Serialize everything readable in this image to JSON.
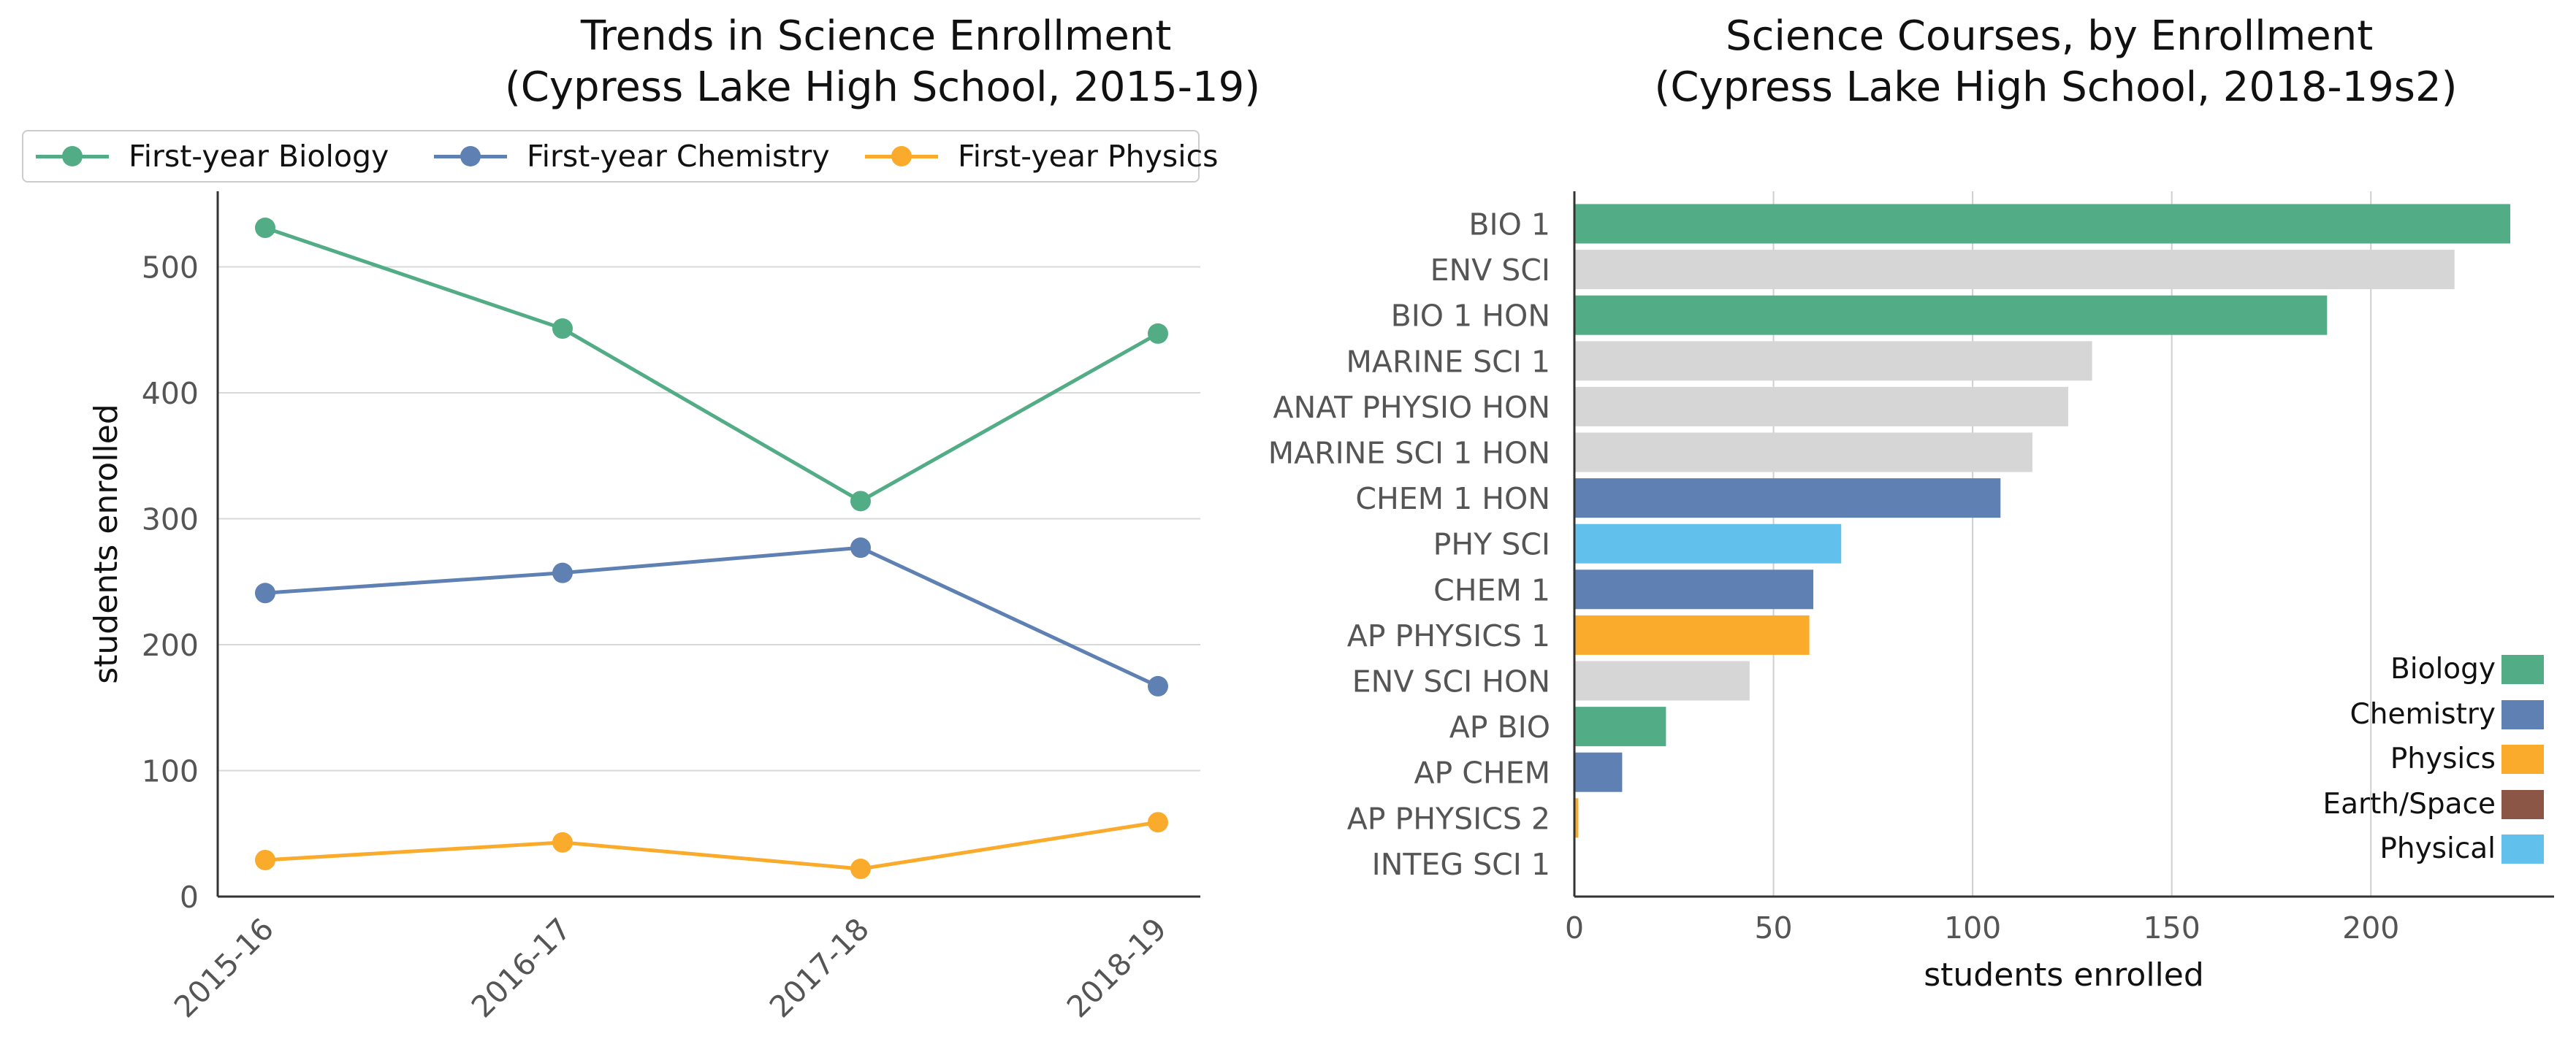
{
  "chart_data": [
    {
      "type": "line",
      "title": "Trends in Science Enrollment\n(Cypress Lake High School, 2015-19)",
      "xlabel": "",
      "ylabel": "students enrolled",
      "x": [
        "2015-16",
        "2016-17",
        "2017-18",
        "2018-19"
      ],
      "ylim": [
        0,
        560
      ],
      "yticks": [
        0,
        100,
        200,
        300,
        400,
        500
      ],
      "grid": "horizontal",
      "legend": "top",
      "series": [
        {
          "name": "First-year Biology",
          "color": "#52ac86",
          "values": [
            531,
            451,
            314,
            447
          ]
        },
        {
          "name": "First-year Chemistry",
          "color": "#5e80b2",
          "values": [
            241,
            257,
            277,
            167
          ]
        },
        {
          "name": "First-year Physics",
          "color": "#fbab2c",
          "values": [
            29,
            43,
            22,
            59
          ]
        }
      ]
    },
    {
      "type": "bar",
      "orientation": "horizontal",
      "title": "Science Courses, by Enrollment\n(Cypress Lake High School, 2018-19s2)",
      "xlabel": "students enrolled",
      "ylabel": "",
      "xlim": [
        0,
        246
      ],
      "xticks": [
        0,
        50,
        100,
        150,
        200
      ],
      "grid": "vertical",
      "legend": "bottom-right",
      "categories": [
        "BIO 1",
        "ENV SCI",
        "BIO 1 HON",
        "MARINE SCI 1",
        "ANAT PHYSIO HON",
        "MARINE SCI 1 HON",
        "CHEM 1 HON",
        "PHY SCI",
        "CHEM 1",
        "AP PHYSICS 1",
        "ENV SCI HON",
        "AP BIO",
        "AP CHEM",
        "AP PHYSICS 2",
        "INTEG SCI 1"
      ],
      "values": [
        235,
        221,
        189,
        130,
        124,
        115,
        107,
        67,
        60,
        59,
        44,
        23,
        12,
        1,
        0
      ],
      "bar_colors": [
        "#52ac86",
        "#d6d6d6",
        "#52ac86",
        "#d6d6d6",
        "#d6d6d6",
        "#d6d6d6",
        "#5e80b2",
        "#62c0ed",
        "#5e80b2",
        "#fbab2c",
        "#d6d6d6",
        "#52ac86",
        "#5e80b2",
        "#fbab2c",
        "#d6d6d6"
      ],
      "legend_entries": [
        {
          "name": "Biology",
          "color": "#52ac86"
        },
        {
          "name": "Chemistry",
          "color": "#5e80b2"
        },
        {
          "name": "Physics",
          "color": "#fbab2c"
        },
        {
          "name": "Earth/Space",
          "color": "#8c5647"
        },
        {
          "name": "Physical",
          "color": "#62c0ed"
        }
      ]
    }
  ]
}
